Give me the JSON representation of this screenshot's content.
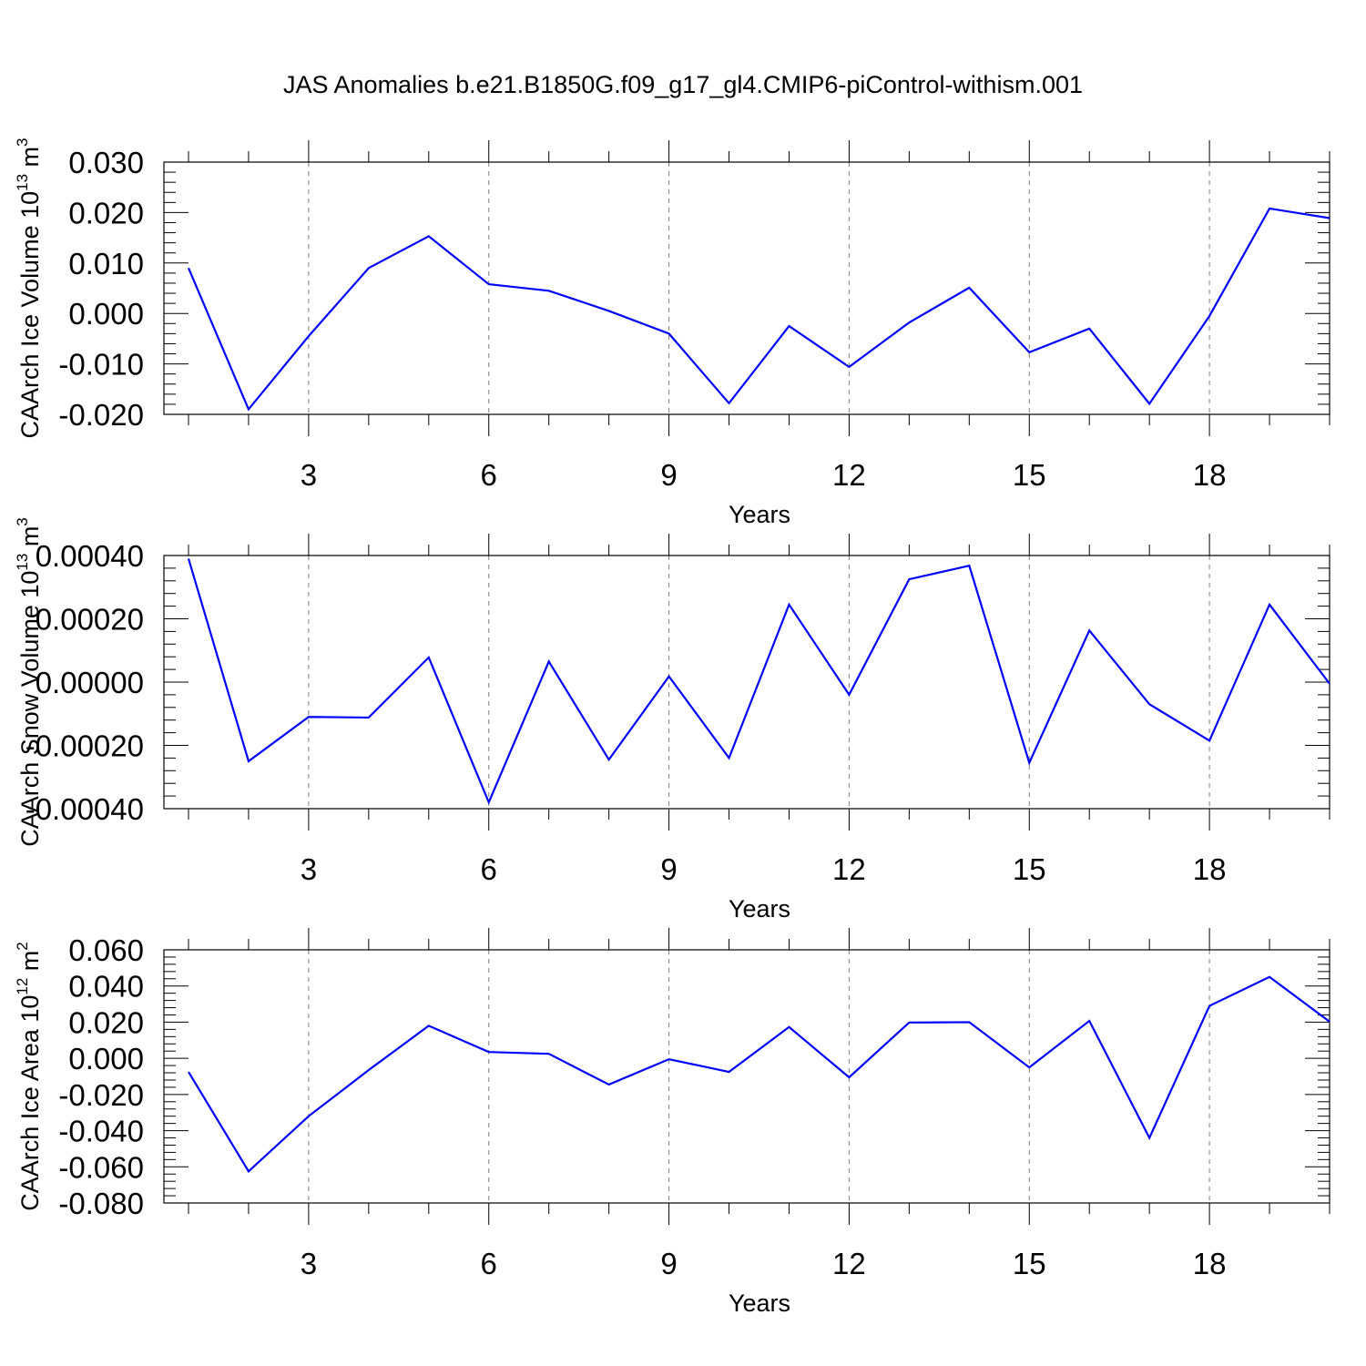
{
  "title": "JAS Anomalies b.e21.B1850G.f09_g17_gl4.CMIP6-piControl-withism.001",
  "colors": {
    "line": "#0000ff",
    "axis": "#000000",
    "grid": "#808080"
  },
  "chart_data": [
    {
      "type": "line",
      "xlabel": "Years",
      "ylabel": "CAArch Ice Volume 10",
      "ylabel_sup1": "13",
      "ylabel_mid": " m",
      "ylabel_sup2": "3",
      "xlim": [
        1,
        20
      ],
      "ylim": [
        -0.02,
        0.03
      ],
      "x_ticks": [
        3,
        6,
        9,
        12,
        15,
        18
      ],
      "y_ticks": [
        -0.02,
        -0.01,
        0.0,
        0.01,
        0.02,
        0.03
      ],
      "y_tick_labels": [
        "-0.020",
        "-0.010",
        "0.000",
        "0.010",
        "0.020",
        "0.030"
      ],
      "grid": "vertical dashed at major x ticks",
      "x": [
        1,
        2,
        3,
        4,
        5,
        6,
        7,
        8,
        9,
        10,
        11,
        12,
        13,
        14,
        15,
        16,
        17,
        18,
        19,
        20
      ],
      "series": [
        {
          "values": [
            0.009,
            -0.019,
            -0.0045,
            0.009,
            0.0153,
            0.0058,
            0.0045,
            0.0005,
            -0.004,
            -0.0178,
            -0.0025,
            -0.0106,
            -0.0018,
            0.0051,
            -0.0077,
            -0.003,
            -0.0179,
            -0.0005,
            0.0208,
            0.0189
          ]
        }
      ]
    },
    {
      "type": "line",
      "xlabel": "Years",
      "ylabel": "CAArch Snow Volume 10",
      "ylabel_sup1": "13",
      "ylabel_mid": " m",
      "ylabel_sup2": "3",
      "xlim": [
        1,
        20
      ],
      "ylim": [
        -0.0004,
        0.0004
      ],
      "x_ticks": [
        3,
        6,
        9,
        12,
        15,
        18
      ],
      "y_ticks": [
        -0.0004,
        -0.0002,
        0.0,
        0.0002,
        0.0004
      ],
      "y_tick_labels": [
        "-0.00040",
        "-0.00020",
        "0.00000",
        "0.00020",
        "0.00040"
      ],
      "grid": "vertical dashed at major x ticks",
      "x": [
        1,
        2,
        3,
        4,
        5,
        6,
        7,
        8,
        9,
        10,
        11,
        12,
        13,
        14,
        15,
        16,
        17,
        18,
        19,
        20
      ],
      "series": [
        {
          "values": [
            0.00039,
            -0.00025,
            -0.00011,
            -0.000112,
            7.8e-05,
            -0.00038,
            6.5e-05,
            -0.000245,
            1.8e-05,
            -0.00024,
            0.000245,
            -4e-05,
            0.000325,
            0.000368,
            -0.000255,
            0.000163,
            -7e-05,
            -0.000185,
            0.000245,
            -5e-06
          ]
        }
      ]
    },
    {
      "type": "line",
      "xlabel": "Years",
      "ylabel": "CAArch Ice Area 10",
      "ylabel_sup1": "12",
      "ylabel_mid": " m",
      "ylabel_sup2": "2",
      "xlim": [
        1,
        20
      ],
      "ylim": [
        -0.08,
        0.06
      ],
      "x_ticks": [
        3,
        6,
        9,
        12,
        15,
        18
      ],
      "y_ticks": [
        -0.08,
        -0.06,
        -0.04,
        -0.02,
        0.0,
        0.02,
        0.04,
        0.06
      ],
      "y_tick_labels": [
        "-0.080",
        "-0.060",
        "-0.040",
        "-0.020",
        "0.000",
        "0.020",
        "0.040",
        "0.060"
      ],
      "grid": "vertical dashed at major x ticks",
      "x": [
        1,
        2,
        3,
        4,
        5,
        6,
        7,
        8,
        9,
        10,
        11,
        12,
        13,
        14,
        15,
        16,
        17,
        18,
        19,
        20
      ],
      "series": [
        {
          "values": [
            -0.0075,
            -0.0625,
            -0.032,
            -0.0065,
            0.018,
            0.0035,
            0.0025,
            -0.0145,
            -0.0005,
            -0.0075,
            0.0173,
            -0.0105,
            0.0198,
            0.02,
            -0.005,
            0.0207,
            -0.044,
            0.029,
            0.045,
            0.0203
          ]
        }
      ]
    }
  ]
}
